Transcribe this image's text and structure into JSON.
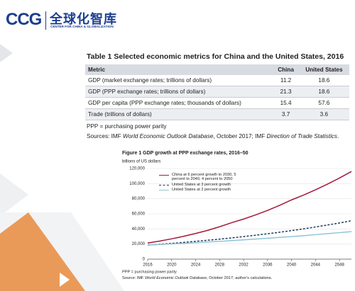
{
  "logo": {
    "short": "CCG",
    "chinese": "全球化智库",
    "english": "CENTER FOR CHINA & GLOBALIZATION"
  },
  "table": {
    "title": "Table 1   Selected economic metrics for China and the United States, 2016",
    "header": [
      "Metric",
      "China",
      "United States"
    ],
    "rows": [
      [
        "GDP (market exchange rates; trillions of dollars)",
        "11.2",
        "18.6"
      ],
      [
        "GDP (PPP exchange rates; trillions of dollars)",
        "21.3",
        "18.6"
      ],
      [
        "GDP per capita (PPP exchange rates; thousands of dollars)",
        "15.4",
        "57.6"
      ],
      [
        "Trade (trillions of dollars)",
        "3.7",
        "3.6"
      ]
    ],
    "note": "PPP = purchasing power parity",
    "sources": [
      "Sources: IMF ",
      "World Economic Outlook Database",
      ", October 2017; IMF ",
      "Direction of Trade Statistics",
      "."
    ]
  },
  "chart_data": {
    "type": "line",
    "title": "Figure 1   GDP growth at PPP exchange rates, 2016–50",
    "y_label": "billions of US dollars",
    "x": [
      2016,
      2018,
      2020,
      2022,
      2024,
      2026,
      2028,
      2030,
      2032,
      2034,
      2036,
      2038,
      2040,
      2042,
      2044,
      2046,
      2048,
      2050
    ],
    "series": [
      {
        "name": "China at 6 percent growth to 2030, 5 percent to 2040, 4 percent to 2050",
        "color": "#a3193a",
        "dash": false,
        "values": [
          21300,
          23900,
          26900,
          30200,
          34000,
          38100,
          42900,
          48200,
          53100,
          58500,
          64500,
          71200,
          78400,
          84800,
          91800,
          99300,
          107400,
          116100
        ]
      },
      {
        "name": "United States at 3 percent growth",
        "color": "#1f3a5f",
        "dash": true,
        "values": [
          18600,
          19700,
          20900,
          22200,
          23600,
          25000,
          26500,
          28100,
          29900,
          31700,
          33600,
          35600,
          37800,
          40100,
          42600,
          45200,
          47900,
          50800
        ]
      },
      {
        "name": "United States at 2 percent growth",
        "color": "#8ec5d6",
        "dash": false,
        "values": [
          18600,
          19400,
          20100,
          20900,
          21800,
          22700,
          23600,
          24500,
          25500,
          26600,
          27600,
          28800,
          29900,
          31100,
          32400,
          33700,
          35100,
          36500
        ]
      }
    ],
    "xlim": [
      2016,
      2050
    ],
    "xticks": [
      2016,
      2020,
      2024,
      2028,
      2032,
      2036,
      2040,
      2044,
      2048
    ],
    "ylim": [
      0,
      120000
    ],
    "yticks": [
      0,
      {
        "value": 20000,
        "label": "20,000"
      },
      {
        "value": 40000,
        "label": "40,000"
      },
      {
        "value": 60000,
        "label": "60,000"
      },
      {
        "value": 80000,
        "label": "80,000"
      },
      {
        "value": 100000,
        "label": "100,000"
      },
      {
        "value": 120000,
        "label": "120,000"
      }
    ],
    "grid": true,
    "note": "PPP = purchasing power parity",
    "source": [
      "Source: IMF ",
      "World Economic Outlook",
      " Database, October 2017; author's calculations."
    ]
  }
}
